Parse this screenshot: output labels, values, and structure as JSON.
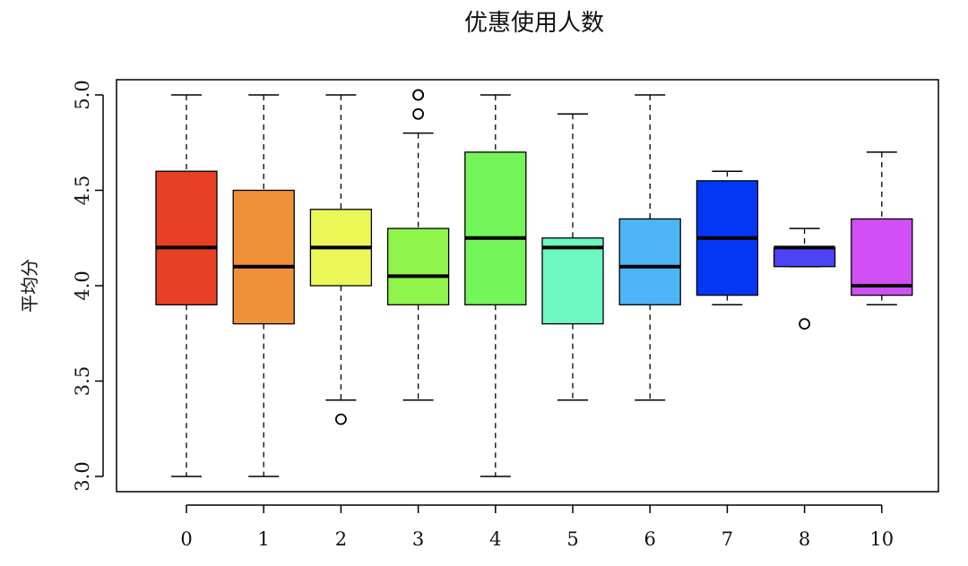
{
  "chart_data": {
    "type": "boxplot",
    "title": "优惠使用人数",
    "xlabel": "",
    "ylabel": "平均分",
    "ylim": [
      3.0,
      5.0
    ],
    "yticks": [
      "3.0",
      "3.5",
      "4.0",
      "4.5",
      "5.0"
    ],
    "grid": false,
    "categories": [
      "0",
      "1",
      "2",
      "3",
      "4",
      "5",
      "6",
      "7",
      "8",
      "10"
    ],
    "colors": [
      "#E84024",
      "#F0913A",
      "#EBF756",
      "#8FF44A",
      "#74F559",
      "#6EF6C0",
      "#4DB5F6",
      "#0436F5",
      "#4B44F5",
      "#D050F5"
    ],
    "boxes": [
      {
        "whisker_low": 3.0,
        "q1": 3.9,
        "median": 4.2,
        "q3": 4.6,
        "whisker_high": 5.0,
        "outliers": []
      },
      {
        "whisker_low": 3.0,
        "q1": 3.8,
        "median": 4.1,
        "q3": 4.5,
        "whisker_high": 5.0,
        "outliers": []
      },
      {
        "whisker_low": 3.4,
        "q1": 4.0,
        "median": 4.2,
        "q3": 4.4,
        "whisker_high": 5.0,
        "outliers": [
          3.3
        ]
      },
      {
        "whisker_low": 3.4,
        "q1": 3.9,
        "median": 4.05,
        "q3": 4.3,
        "whisker_high": 4.8,
        "outliers": [
          4.9,
          5.0,
          5.0
        ]
      },
      {
        "whisker_low": 3.0,
        "q1": 3.9,
        "median": 4.25,
        "q3": 4.7,
        "whisker_high": 5.0,
        "outliers": []
      },
      {
        "whisker_low": 3.4,
        "q1": 3.8,
        "median": 4.2,
        "q3": 4.25,
        "whisker_high": 4.9,
        "outliers": []
      },
      {
        "whisker_low": 3.4,
        "q1": 3.9,
        "median": 4.1,
        "q3": 4.35,
        "whisker_high": 5.0,
        "outliers": []
      },
      {
        "whisker_low": 3.9,
        "q1": 3.95,
        "median": 4.25,
        "q3": 4.55,
        "whisker_high": 4.6,
        "outliers": []
      },
      {
        "whisker_low": 4.1,
        "q1": 4.1,
        "median": 4.2,
        "q3": 4.2,
        "whisker_high": 4.3,
        "outliers": [
          3.8
        ]
      },
      {
        "whisker_low": 3.9,
        "q1": 3.95,
        "median": 4.0,
        "q3": 4.35,
        "whisker_high": 4.7,
        "outliers": []
      }
    ]
  }
}
